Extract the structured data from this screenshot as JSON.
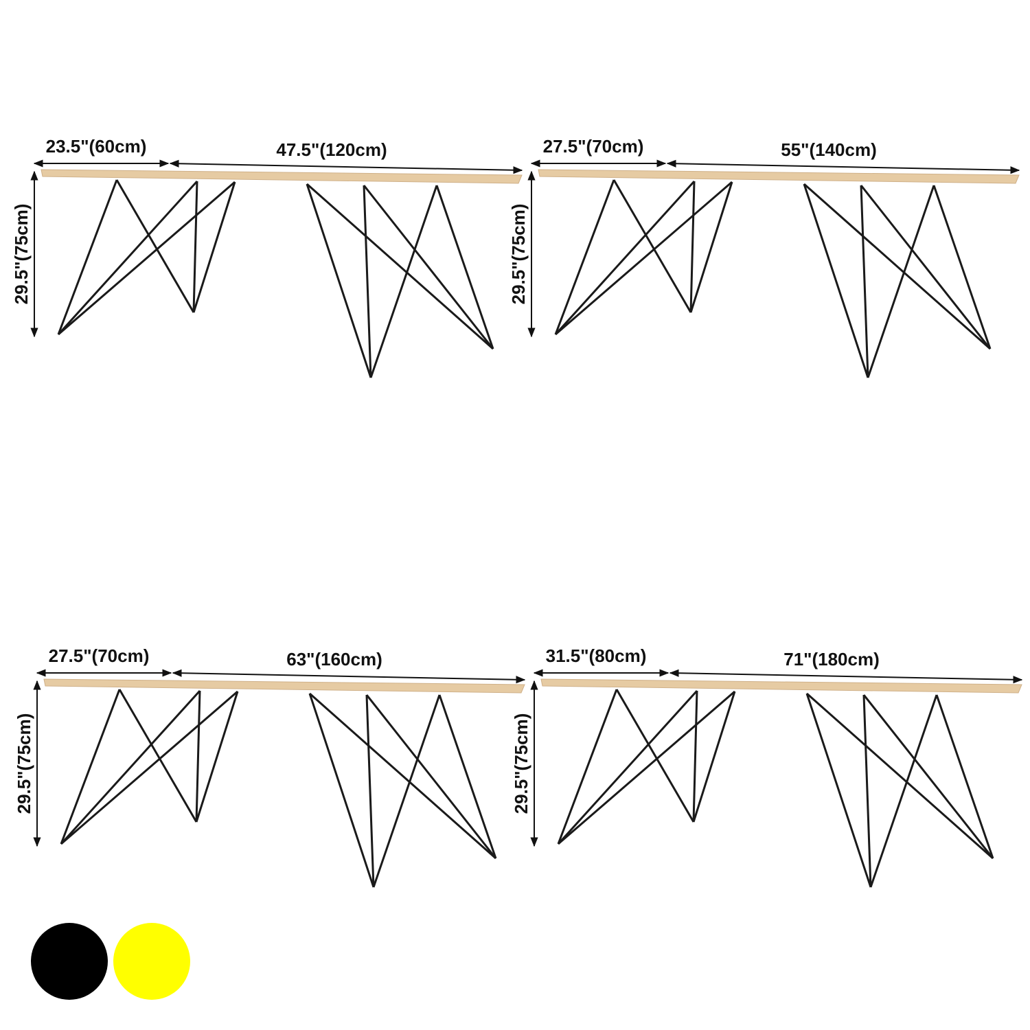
{
  "tables": [
    {
      "depth": "23.5\"(60cm)",
      "width": "47.5\"(120cm)",
      "height": "29.5\"(75cm)"
    },
    {
      "depth": "27.5\"(70cm)",
      "width": "55\"(140cm)",
      "height": "29.5\"(75cm)"
    },
    {
      "depth": "27.5\"(70cm)",
      "width": "63\"(160cm)",
      "height": "29.5\"(75cm)"
    },
    {
      "depth": "31.5\"(80cm)",
      "width": "71\"(180cm)",
      "height": "29.5\"(75cm)"
    }
  ]
}
